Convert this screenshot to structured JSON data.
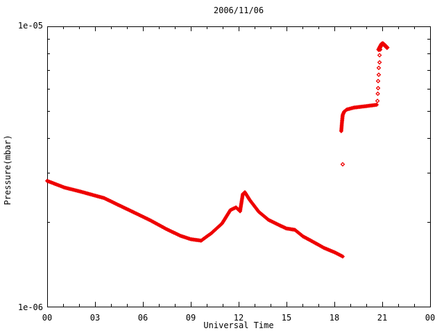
{
  "colors": {
    "marker": "#ee0000",
    "axis": "#000000",
    "background": "#ffffff"
  },
  "axes": {
    "x": {
      "min": 0,
      "max": 24,
      "minor_step": 1,
      "major_ticks": [
        0,
        3,
        6,
        9,
        12,
        15,
        18,
        21,
        24
      ],
      "major_labels": [
        "00",
        "03",
        "06",
        "09",
        "12",
        "15",
        "18",
        "21",
        "00"
      ]
    },
    "y": {
      "scale": "log",
      "min": 1e-06,
      "max": 1e-05,
      "major_ticks": [
        1e-06,
        1e-05
      ],
      "major_labels": [
        "1e-06",
        "1e-05"
      ],
      "minor_multipliers": [
        2,
        3,
        4,
        5,
        6,
        7,
        8,
        9
      ]
    }
  },
  "chart_data": {
    "type": "scatter",
    "title": "2006/11/06",
    "xlabel": "Universal Time",
    "ylabel": "Pressure(mbar)",
    "x_unit": "hours",
    "xlim": [
      0,
      24
    ],
    "ylim": [
      1e-06,
      1e-05
    ],
    "yscale": "log",
    "grid": false,
    "legend": null,
    "marker": "diamond",
    "series": [
      {
        "name": "pressure-main-curve",
        "style": "dense",
        "size": 2.2,
        "points": [
          [
            0.0,
            2.81e-06
          ],
          [
            1.09,
            2.66e-06
          ],
          [
            2.13,
            2.57e-06
          ],
          [
            3.0,
            2.49e-06
          ],
          [
            3.57,
            2.44e-06
          ],
          [
            4.43,
            2.31e-06
          ],
          [
            5.43,
            2.17e-06
          ],
          [
            6.48,
            2.03e-06
          ],
          [
            7.48,
            1.89e-06
          ],
          [
            8.35,
            1.79e-06
          ],
          [
            9.0,
            1.74e-06
          ],
          [
            9.65,
            1.72e-06
          ],
          [
            10.3,
            1.83e-06
          ],
          [
            10.96,
            1.98e-06
          ],
          [
            11.48,
            2.21e-06
          ],
          [
            11.83,
            2.26e-06
          ],
          [
            12.09,
            2.19e-06
          ],
          [
            12.26,
            2.52e-06
          ],
          [
            12.39,
            2.56e-06
          ],
          [
            12.7,
            2.4e-06
          ],
          [
            13.26,
            2.18e-06
          ],
          [
            13.87,
            2.04e-06
          ],
          [
            14.57,
            1.95e-06
          ],
          [
            15.0,
            1.9e-06
          ],
          [
            15.52,
            1.88e-06
          ],
          [
            16.04,
            1.78e-06
          ],
          [
            16.61,
            1.71e-06
          ],
          [
            17.35,
            1.62e-06
          ],
          [
            18.04,
            1.56e-06
          ],
          [
            18.52,
            1.51e-06
          ]
        ]
      },
      {
        "name": "isolated-point",
        "style": "sparse",
        "size": 2.4,
        "points": [
          [
            18.52,
            3.22e-06
          ]
        ]
      },
      {
        "name": "pressure-upper-plateau",
        "style": "dense",
        "size": 2.2,
        "points": [
          [
            18.43,
            4.23e-06
          ],
          [
            18.48,
            4.58e-06
          ],
          [
            18.52,
            4.82e-06
          ],
          [
            18.61,
            4.96e-06
          ],
          [
            18.78,
            5.05e-06
          ],
          [
            19.22,
            5.13e-06
          ],
          [
            19.96,
            5.19e-06
          ],
          [
            20.65,
            5.25e-06
          ]
        ]
      },
      {
        "name": "pressure-step-rise",
        "style": "sparse",
        "size": 2.4,
        "points": [
          [
            20.7,
            5.42e-06
          ],
          [
            20.72,
            5.75e-06
          ],
          [
            20.74,
            6.02e-06
          ],
          [
            20.74,
            6.38e-06
          ],
          [
            20.78,
            6.72e-06
          ],
          [
            20.78,
            7.11e-06
          ],
          [
            20.83,
            7.44e-06
          ],
          [
            20.83,
            7.89e-06
          ],
          [
            20.87,
            8.26e-06
          ]
        ]
      },
      {
        "name": "pressure-top-cluster",
        "style": "dense",
        "size": 2.8,
        "points": [
          [
            20.78,
            8.26e-06
          ],
          [
            20.87,
            8.45e-06
          ],
          [
            20.96,
            8.64e-06
          ],
          [
            21.04,
            8.68e-06
          ],
          [
            21.17,
            8.55e-06
          ],
          [
            21.3,
            8.4e-06
          ]
        ]
      }
    ]
  }
}
